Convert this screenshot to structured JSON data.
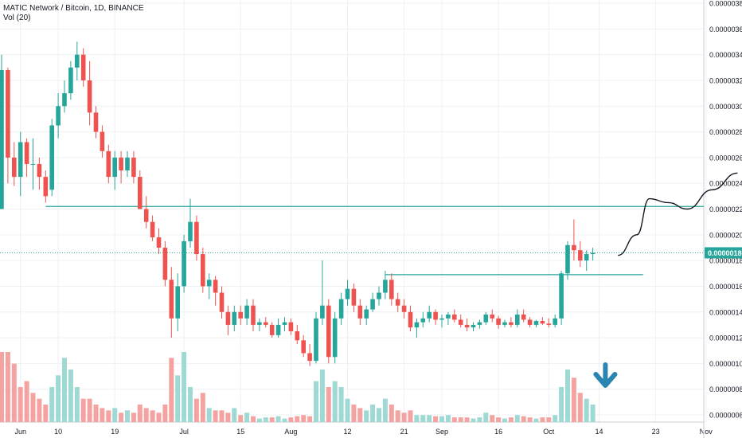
{
  "header": {
    "symbol": "MATIC Network / Bitcoin, 1D, BINANCE",
    "indicator": "Vol (20)"
  },
  "colors": {
    "up": "#26a69a",
    "down": "#ef5350",
    "vol_up": "#9ed9d3",
    "vol_down": "#f5a3a1",
    "grid": "#eef0f3",
    "line": "#26a69a",
    "drawing": "#131722",
    "arrow": "#2a85b0",
    "axis_text": "#131722",
    "price_tag_bg": "#26a69a"
  },
  "chart_data": {
    "type": "candlestick",
    "y_axis": {
      "ticks": [
        "0.00000060",
        "0.00000080",
        "0.00000100",
        "0.00000120",
        "0.00000140",
        "0.00000160",
        "0.00000180",
        "0.00000200",
        "0.00000220",
        "0.00000240",
        "0.00000260",
        "0.00000280",
        "0.00000300",
        "0.00000320",
        "0.00000340",
        "0.00000360",
        "0.00000380"
      ],
      "ylim": [
        5.2e-08,
        3.85e-07
      ]
    },
    "x_axis": {
      "labels": [
        "Jun",
        "10",
        "19",
        "Jul",
        "15",
        "Aug",
        "12",
        "21",
        "Sep",
        "16",
        "Oct",
        "14",
        "23",
        "Nov"
      ],
      "label_days": [
        4,
        10,
        19,
        30,
        39,
        47,
        56,
        65,
        71,
        80,
        88,
        96,
        105,
        113
      ]
    },
    "current_price": "0.00000186",
    "volume_series": "Vol (20)",
    "candles": [
      [
        1,
        2.2,
        3.4,
        2.2,
        3.28
      ],
      [
        2,
        3.28,
        3.3,
        2.4,
        2.6
      ],
      [
        3,
        2.6,
        2.72,
        2.38,
        2.45
      ],
      [
        4,
        2.45,
        2.8,
        2.3,
        2.72
      ],
      [
        5,
        2.72,
        2.75,
        2.45,
        2.55
      ],
      [
        6,
        2.55,
        2.75,
        2.35,
        2.55
      ],
      [
        7,
        2.55,
        2.6,
        2.35,
        2.45
      ],
      [
        8,
        2.45,
        2.5,
        2.25,
        2.3
      ],
      [
        9,
        2.35,
        2.9,
        2.3,
        2.85
      ],
      [
        10,
        2.85,
        3.1,
        2.75,
        3.0
      ],
      [
        11,
        3.0,
        3.2,
        2.95,
        3.1
      ],
      [
        12,
        3.1,
        3.35,
        3.05,
        3.3
      ],
      [
        13,
        3.3,
        3.5,
        3.2,
        3.4
      ],
      [
        14,
        3.4,
        3.45,
        3.15,
        3.2
      ],
      [
        15,
        3.2,
        3.35,
        2.85,
        2.95
      ],
      [
        16,
        2.95,
        3.0,
        2.75,
        2.8
      ],
      [
        17,
        2.8,
        2.85,
        2.6,
        2.65
      ],
      [
        18,
        2.65,
        2.7,
        2.4,
        2.45
      ],
      [
        19,
        2.45,
        2.65,
        2.35,
        2.6
      ],
      [
        20,
        2.6,
        2.65,
        2.4,
        2.5
      ],
      [
        21,
        2.5,
        2.65,
        2.45,
        2.6
      ],
      [
        22,
        2.6,
        2.65,
        2.4,
        2.45
      ],
      [
        23,
        2.45,
        2.5,
        2.2,
        2.2
      ],
      [
        24,
        2.2,
        2.3,
        2.05,
        2.1
      ],
      [
        25,
        2.1,
        2.15,
        1.95,
        1.98
      ],
      [
        26,
        1.98,
        2.05,
        1.85,
        1.9
      ],
      [
        27,
        1.9,
        1.95,
        1.6,
        1.65
      ],
      [
        28,
        1.65,
        1.75,
        1.2,
        1.35
      ],
      [
        29,
        1.35,
        1.7,
        1.25,
        1.6
      ],
      [
        30,
        1.6,
        2.0,
        1.55,
        1.95
      ],
      [
        31,
        1.95,
        2.28,
        1.9,
        2.1
      ],
      [
        32,
        2.1,
        2.15,
        1.8,
        1.85
      ],
      [
        33,
        1.85,
        1.9,
        1.55,
        1.6
      ],
      [
        34,
        1.6,
        1.7,
        1.5,
        1.65
      ],
      [
        35,
        1.65,
        1.68,
        1.45,
        1.55
      ],
      [
        36,
        1.55,
        1.6,
        1.35,
        1.4
      ],
      [
        37,
        1.4,
        1.45,
        1.22,
        1.3
      ],
      [
        38,
        1.3,
        1.45,
        1.25,
        1.4
      ],
      [
        39,
        1.4,
        1.45,
        1.3,
        1.35
      ],
      [
        40,
        1.35,
        1.5,
        1.3,
        1.45
      ],
      [
        41,
        1.45,
        1.5,
        1.25,
        1.3
      ],
      [
        42,
        1.3,
        1.35,
        1.25,
        1.32
      ],
      [
        43,
        1.32,
        1.36,
        1.28,
        1.3
      ],
      [
        44,
        1.3,
        1.32,
        1.2,
        1.22
      ],
      [
        45,
        1.22,
        1.35,
        1.2,
        1.3
      ],
      [
        46,
        1.3,
        1.36,
        1.25,
        1.32
      ],
      [
        47,
        1.32,
        1.35,
        1.22,
        1.25
      ],
      [
        48,
        1.25,
        1.3,
        1.15,
        1.18
      ],
      [
        49,
        1.18,
        1.22,
        1.05,
        1.08
      ],
      [
        50,
        1.08,
        1.15,
        0.98,
        1.02
      ],
      [
        51,
        1.02,
        1.4,
        1.0,
        1.35
      ],
      [
        52,
        1.35,
        1.8,
        1.3,
        1.45
      ],
      [
        53,
        1.45,
        1.5,
        1.0,
        1.05
      ],
      [
        54,
        1.05,
        1.4,
        1.0,
        1.35
      ],
      [
        55,
        1.35,
        1.55,
        1.3,
        1.5
      ],
      [
        56,
        1.5,
        1.65,
        1.45,
        1.58
      ],
      [
        57,
        1.58,
        1.62,
        1.4,
        1.45
      ],
      [
        58,
        1.45,
        1.5,
        1.3,
        1.35
      ],
      [
        59,
        1.35,
        1.45,
        1.3,
        1.42
      ],
      [
        60,
        1.42,
        1.55,
        1.4,
        1.5
      ],
      [
        61,
        1.5,
        1.6,
        1.45,
        1.55
      ],
      [
        62,
        1.55,
        1.72,
        1.5,
        1.65
      ],
      [
        63,
        1.65,
        1.7,
        1.45,
        1.5
      ],
      [
        64,
        1.5,
        1.55,
        1.4,
        1.45
      ],
      [
        65,
        1.45,
        1.5,
        1.35,
        1.4
      ],
      [
        66,
        1.4,
        1.45,
        1.25,
        1.28
      ],
      [
        67,
        1.28,
        1.35,
        1.2,
        1.32
      ],
      [
        68,
        1.32,
        1.4,
        1.28,
        1.35
      ],
      [
        69,
        1.35,
        1.45,
        1.32,
        1.4
      ],
      [
        70,
        1.4,
        1.42,
        1.3,
        1.34
      ],
      [
        71,
        1.34,
        1.38,
        1.28,
        1.35
      ],
      [
        72,
        1.35,
        1.4,
        1.3,
        1.38
      ],
      [
        73,
        1.38,
        1.42,
        1.32,
        1.34
      ],
      [
        74,
        1.34,
        1.38,
        1.28,
        1.3
      ],
      [
        75,
        1.3,
        1.35,
        1.25,
        1.28
      ],
      [
        76,
        1.28,
        1.32,
        1.25,
        1.3
      ],
      [
        77,
        1.3,
        1.34,
        1.27,
        1.32
      ],
      [
        78,
        1.32,
        1.4,
        1.3,
        1.38
      ],
      [
        79,
        1.38,
        1.42,
        1.32,
        1.35
      ],
      [
        80,
        1.35,
        1.37,
        1.27,
        1.3
      ],
      [
        81,
        1.3,
        1.34,
        1.28,
        1.32
      ],
      [
        82,
        1.32,
        1.36,
        1.28,
        1.3
      ],
      [
        83,
        1.3,
        1.42,
        1.28,
        1.38
      ],
      [
        84,
        1.38,
        1.42,
        1.32,
        1.34
      ],
      [
        85,
        1.34,
        1.36,
        1.28,
        1.3
      ],
      [
        86,
        1.3,
        1.34,
        1.28,
        1.33
      ],
      [
        87,
        1.33,
        1.36,
        1.3,
        1.31
      ],
      [
        88,
        1.31,
        1.35,
        1.28,
        1.3
      ],
      [
        89,
        1.3,
        1.38,
        1.28,
        1.35
      ],
      [
        90,
        1.35,
        1.72,
        1.3,
        1.7
      ],
      [
        91,
        1.7,
        1.95,
        1.65,
        1.92
      ],
      [
        92,
        1.92,
        2.12,
        1.8,
        1.88
      ],
      [
        93,
        1.88,
        1.95,
        1.75,
        1.8
      ],
      [
        94,
        1.8,
        1.88,
        1.72,
        1.85
      ],
      [
        95,
        1.85,
        1.9,
        1.8,
        1.86
      ]
    ],
    "volumes": [
      [
        1,
        0.6,
        "down"
      ],
      [
        2,
        0.6,
        "down"
      ],
      [
        3,
        0.5,
        "down"
      ],
      [
        4,
        0.3,
        "down"
      ],
      [
        5,
        0.35,
        "down"
      ],
      [
        6,
        0.25,
        "down"
      ],
      [
        7,
        0.2,
        "down"
      ],
      [
        8,
        0.15,
        "down"
      ],
      [
        9,
        0.3,
        "up"
      ],
      [
        10,
        0.4,
        "up"
      ],
      [
        11,
        0.55,
        "up"
      ],
      [
        12,
        0.45,
        "up"
      ],
      [
        13,
        0.3,
        "up"
      ],
      [
        14,
        0.2,
        "down"
      ],
      [
        15,
        0.2,
        "down"
      ],
      [
        16,
        0.15,
        "down"
      ],
      [
        17,
        0.12,
        "down"
      ],
      [
        18,
        0.1,
        "down"
      ],
      [
        19,
        0.12,
        "up"
      ],
      [
        20,
        0.08,
        "down"
      ],
      [
        21,
        0.1,
        "up"
      ],
      [
        22,
        0.08,
        "down"
      ],
      [
        23,
        0.15,
        "down"
      ],
      [
        24,
        0.12,
        "down"
      ],
      [
        25,
        0.1,
        "down"
      ],
      [
        26,
        0.08,
        "down"
      ],
      [
        27,
        0.15,
        "down"
      ],
      [
        28,
        0.55,
        "down"
      ],
      [
        29,
        0.4,
        "up"
      ],
      [
        30,
        0.6,
        "up"
      ],
      [
        31,
        0.3,
        "up"
      ],
      [
        32,
        0.2,
        "down"
      ],
      [
        33,
        0.25,
        "down"
      ],
      [
        34,
        0.12,
        "up"
      ],
      [
        35,
        0.1,
        "down"
      ],
      [
        36,
        0.1,
        "down"
      ],
      [
        37,
        0.08,
        "down"
      ],
      [
        38,
        0.12,
        "up"
      ],
      [
        39,
        0.06,
        "down"
      ],
      [
        40,
        0.08,
        "up"
      ],
      [
        41,
        0.05,
        "down"
      ],
      [
        42,
        0.03,
        "up"
      ],
      [
        43,
        0.04,
        "up"
      ],
      [
        44,
        0.04,
        "down"
      ],
      [
        45,
        0.05,
        "up"
      ],
      [
        46,
        0.03,
        "up"
      ],
      [
        47,
        0.04,
        "down"
      ],
      [
        48,
        0.05,
        "down"
      ],
      [
        49,
        0.06,
        "down"
      ],
      [
        50,
        0.05,
        "down"
      ],
      [
        51,
        0.35,
        "up"
      ],
      [
        52,
        0.45,
        "up"
      ],
      [
        53,
        0.3,
        "down"
      ],
      [
        54,
        0.35,
        "up"
      ],
      [
        55,
        0.3,
        "up"
      ],
      [
        56,
        0.2,
        "up"
      ],
      [
        57,
        0.15,
        "down"
      ],
      [
        58,
        0.12,
        "down"
      ],
      [
        59,
        0.1,
        "up"
      ],
      [
        60,
        0.15,
        "up"
      ],
      [
        61,
        0.12,
        "up"
      ],
      [
        62,
        0.2,
        "up"
      ],
      [
        63,
        0.15,
        "down"
      ],
      [
        64,
        0.1,
        "down"
      ],
      [
        65,
        0.08,
        "down"
      ],
      [
        66,
        0.1,
        "down"
      ],
      [
        67,
        0.06,
        "up"
      ],
      [
        68,
        0.06,
        "up"
      ],
      [
        69,
        0.06,
        "up"
      ],
      [
        70,
        0.05,
        "down"
      ],
      [
        71,
        0.05,
        "up"
      ],
      [
        72,
        0.06,
        "up"
      ],
      [
        73,
        0.04,
        "down"
      ],
      [
        74,
        0.04,
        "down"
      ],
      [
        75,
        0.04,
        "down"
      ],
      [
        76,
        0.03,
        "up"
      ],
      [
        77,
        0.04,
        "up"
      ],
      [
        78,
        0.08,
        "up"
      ],
      [
        79,
        0.06,
        "down"
      ],
      [
        80,
        0.04,
        "down"
      ],
      [
        81,
        0.03,
        "up"
      ],
      [
        82,
        0.04,
        "down"
      ],
      [
        83,
        0.06,
        "up"
      ],
      [
        84,
        0.05,
        "down"
      ],
      [
        85,
        0.04,
        "down"
      ],
      [
        86,
        0.03,
        "up"
      ],
      [
        87,
        0.04,
        "down"
      ],
      [
        88,
        0.04,
        "down"
      ],
      [
        89,
        0.06,
        "up"
      ],
      [
        90,
        0.3,
        "up"
      ],
      [
        91,
        0.45,
        "up"
      ],
      [
        92,
        0.38,
        "down"
      ],
      [
        93,
        0.25,
        "down"
      ],
      [
        94,
        0.2,
        "up"
      ],
      [
        95,
        0.15,
        "up"
      ]
    ],
    "resistance_line_1": {
      "start_day": 8,
      "end_day": 116,
      "price": 2.22
    },
    "resistance_line_2": {
      "start_day": 62,
      "end_day": 103,
      "price": 1.69
    },
    "projection": [
      [
        99,
        1.84
      ],
      [
        102,
        2.0
      ],
      [
        104,
        2.28
      ],
      [
        107,
        2.25
      ],
      [
        110,
        2.2
      ],
      [
        114,
        2.35
      ],
      [
        118,
        2.48
      ]
    ],
    "arrow_day": 97
  }
}
